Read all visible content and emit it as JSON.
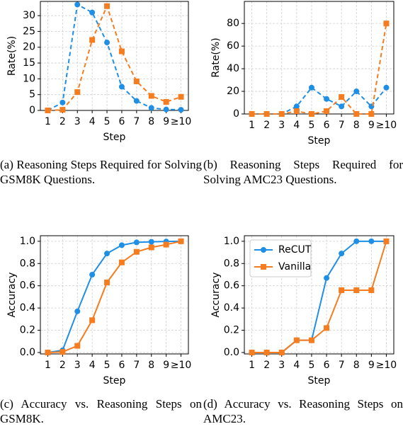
{
  "chart_data": [
    {
      "type": "line",
      "caption": "(a) Reasoning Steps Required for Solving GSM8K Questions.",
      "xlabel": "Step",
      "ylabel": "Rate(%)",
      "categories": [
        "1",
        "2",
        "3",
        "4",
        "5",
        "6",
        "7",
        "8",
        "9",
        "≥10"
      ],
      "series": [
        {
          "color": "#1f8fe6",
          "marker": "circle",
          "values": [
            0,
            2.5,
            33.5,
            31,
            21.5,
            7.5,
            3,
            0.8,
            0.3,
            0.2
          ]
        },
        {
          "color": "#f57c1f",
          "marker": "square",
          "values": [
            0,
            0.2,
            5.8,
            22.3,
            33,
            18.7,
            9.2,
            4.6,
            2.7,
            4.3
          ]
        }
      ],
      "ylim": [
        0,
        34.5
      ],
      "yticks": [
        0,
        5,
        10,
        15,
        20,
        25,
        30
      ],
      "grid": true,
      "dashed": true
    },
    {
      "type": "line",
      "caption": "(b) Reasoning Steps Required for Solving AMC23 Questions.",
      "xlabel": "Step",
      "ylabel": "Rate(%)",
      "categories": [
        "1",
        "2",
        "3",
        "4",
        "5",
        "6",
        "7",
        "8",
        "9",
        "≥10"
      ],
      "series": [
        {
          "color": "#1f8fe6",
          "marker": "circle",
          "values": [
            0,
            0,
            0,
            6.7,
            23.3,
            13.3,
            6.7,
            20,
            6.7,
            23.3
          ]
        },
        {
          "color": "#f57c1f",
          "marker": "square",
          "values": [
            0,
            0,
            0,
            2.5,
            0,
            2.5,
            15,
            0,
            0,
            80
          ]
        }
      ],
      "ylim": [
        0,
        99.5
      ],
      "yticks": [
        0,
        20,
        40,
        60,
        80
      ],
      "grid": true,
      "dashed": true
    },
    {
      "type": "line",
      "caption": "(c) Accuracy vs. Reasoning Steps on GSM8K.",
      "xlabel": "Step",
      "ylabel": "Accuracy",
      "categories": [
        "1",
        "2",
        "3",
        "4",
        "5",
        "6",
        "7",
        "8",
        "9",
        "≥10"
      ],
      "series": [
        {
          "color": "#1f8fe6",
          "marker": "circle",
          "values": [
            0,
            0.02,
            0.37,
            0.7,
            0.89,
            0.965,
            0.99,
            0.995,
            0.998,
            1.0
          ]
        },
        {
          "color": "#f57c1f",
          "marker": "square",
          "values": [
            0,
            0.005,
            0.06,
            0.29,
            0.63,
            0.81,
            0.905,
            0.945,
            0.97,
            1.0
          ]
        }
      ],
      "ylim": [
        -0.013,
        1.05
      ],
      "yticks": [
        {
          "value": 0,
          "label": "0.0"
        },
        {
          "value": 0.2,
          "label": "0.2"
        },
        {
          "value": 0.4,
          "label": "0.4"
        },
        {
          "value": 0.6,
          "label": "0.6"
        },
        {
          "value": 0.8,
          "label": "0.8"
        },
        {
          "value": 1,
          "label": "1.0"
        }
      ],
      "grid": true,
      "dashed": false
    },
    {
      "type": "line",
      "caption": "(d) Accuracy vs. Reasoning Steps on AMC23.",
      "xlabel": "Step",
      "ylabel": "Accuracy",
      "categories": [
        "1",
        "2",
        "3",
        "4",
        "5",
        "6",
        "7",
        "8",
        "9",
        "≥10"
      ],
      "series": [
        {
          "name": "ReCUT",
          "color": "#1f8fe6",
          "marker": "circle",
          "values": [
            0,
            0,
            0,
            0.11,
            0.11,
            0.67,
            0.89,
            1,
            1,
            1
          ]
        },
        {
          "name": "Vanilla",
          "color": "#f57c1f",
          "marker": "square",
          "values": [
            0,
            0,
            0,
            0.11,
            0.11,
            0.22,
            0.56,
            0.56,
            0.56,
            1
          ]
        }
      ],
      "ylim": [
        -0.013,
        1.05
      ],
      "yticks": [
        {
          "value": 0,
          "label": "0.0"
        },
        {
          "value": 0.2,
          "label": "0.2"
        },
        {
          "value": 0.4,
          "label": "0.4"
        },
        {
          "value": 0.6,
          "label": "0.6"
        },
        {
          "value": 0.8,
          "label": "0.8"
        },
        {
          "value": 1,
          "label": "1.0"
        }
      ],
      "grid": true,
      "dashed": false,
      "legend": "upper left"
    }
  ]
}
